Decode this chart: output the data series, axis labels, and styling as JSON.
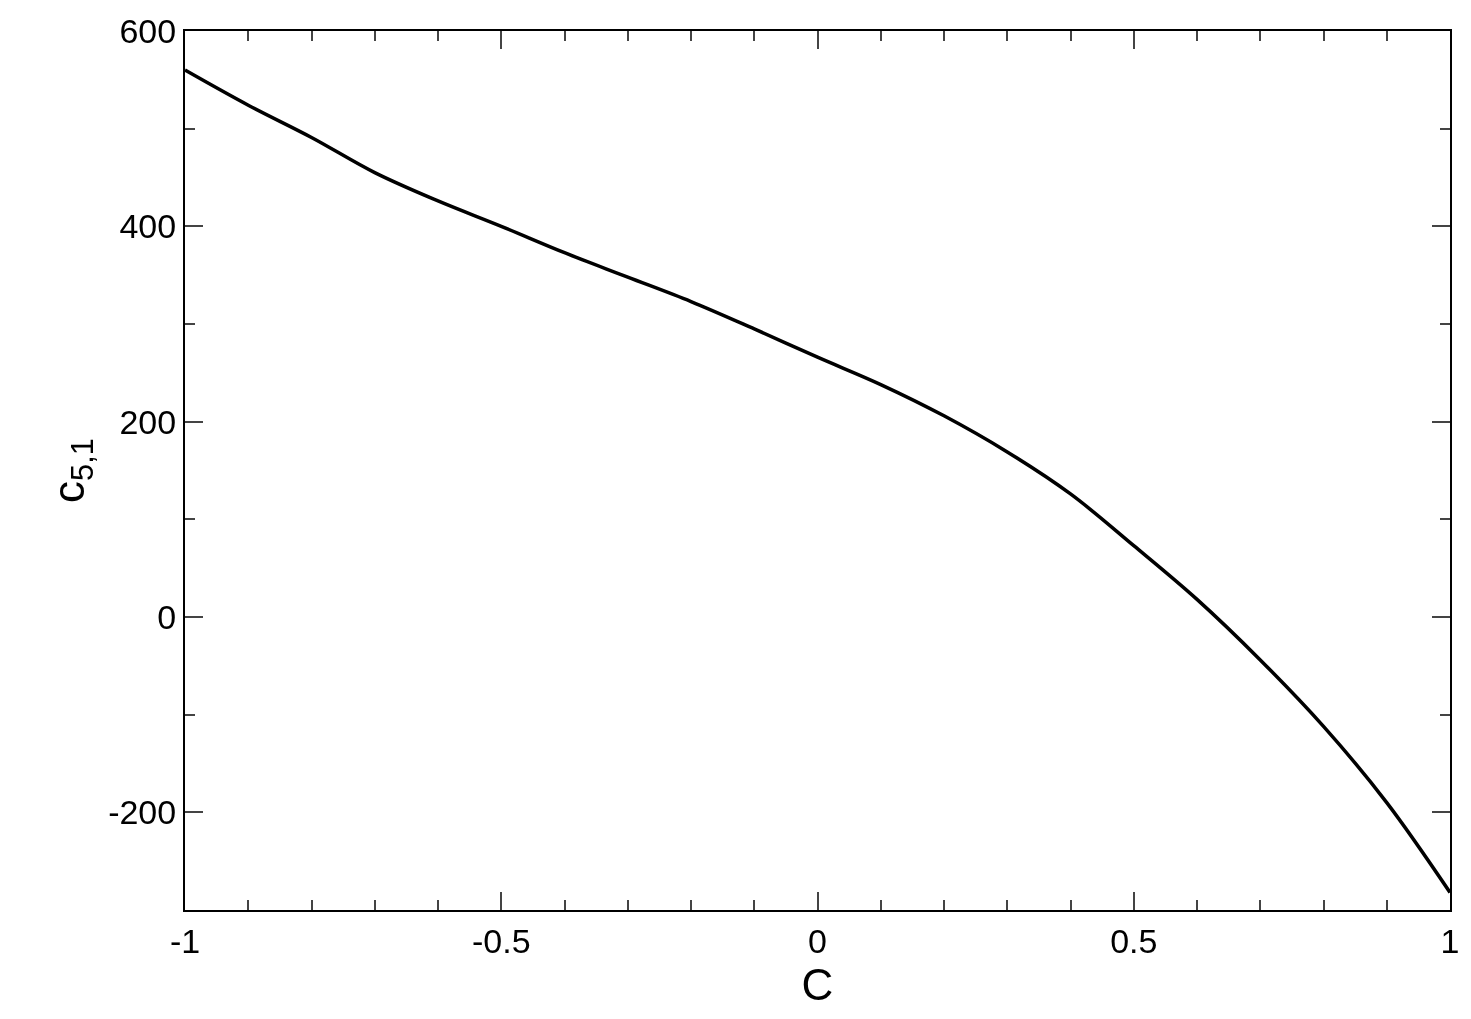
{
  "chart_data": {
    "type": "line",
    "xlabel": "C",
    "ylabel": "c$_{5,1}$",
    "x": [
      -1,
      -0.9,
      -0.8,
      -0.7,
      -0.6,
      -0.5,
      -0.4,
      -0.3,
      -0.2,
      -0.1,
      0,
      0.1,
      0.2,
      0.3,
      0.4,
      0.5,
      0.6,
      0.7,
      0.8,
      0.9,
      1
    ],
    "series": [
      {
        "color": "#000000",
        "values": [
          560,
          524,
          491,
          455,
          426,
          400,
          373,
          348,
          323,
          295,
          266,
          238,
          206,
          169,
          126,
          73,
          18,
          -44,
          -112,
          -190,
          -282
        ]
      }
    ],
    "xlim": [
      -1,
      1
    ],
    "ylim": [
      -300,
      600
    ],
    "xticks": [
      -1,
      -0.5,
      0,
      0.5,
      1
    ],
    "yticks": [
      -200,
      0,
      200,
      400,
      600
    ],
    "marker": "none",
    "line_style": "solid"
  }
}
